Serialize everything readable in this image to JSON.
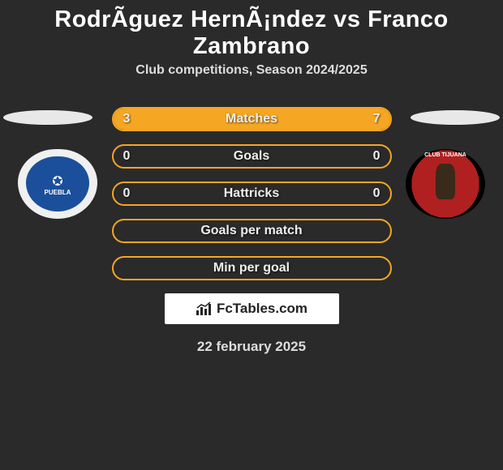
{
  "header": {
    "title": "RodrÃ­guez HernÃ¡ndez vs Franco Zambrano",
    "subtitle": "Club competitions, Season 2024/2025"
  },
  "players": {
    "left": {
      "name": "RodrÃ­guez HernÃ¡ndez",
      "club": "Puebla F.C.",
      "club_color": "#1b4f9b"
    },
    "right": {
      "name": "Franco Zambrano",
      "club": "Club Tijuana",
      "club_color": "#b02020"
    }
  },
  "stats": [
    {
      "label": "Matches",
      "left_val": "3",
      "right_val": "7",
      "left_pct": 30,
      "right_pct": 70
    },
    {
      "label": "Goals",
      "left_val": "0",
      "right_val": "0",
      "left_pct": 0,
      "right_pct": 0
    },
    {
      "label": "Hattricks",
      "left_val": "0",
      "right_val": "0",
      "left_pct": 0,
      "right_pct": 0
    },
    {
      "label": "Goals per match",
      "left_val": "",
      "right_val": "",
      "left_pct": 0,
      "right_pct": 0
    },
    {
      "label": "Min per goal",
      "left_val": "",
      "right_val": "",
      "left_pct": 0,
      "right_pct": 0
    }
  ],
  "branding": {
    "site": "FcTables.com"
  },
  "date": "22 february 2025",
  "colors": {
    "background": "#2a2a2a",
    "accent": "#f5a623",
    "text": "#ffffff",
    "subtext": "#dddddd"
  }
}
